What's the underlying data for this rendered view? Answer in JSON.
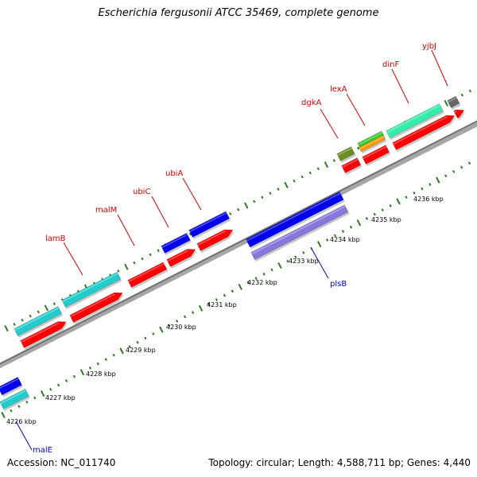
{
  "title": "Escherichia fergusonii ATCC 35469, complete genome",
  "footer": {
    "accession": "Accession: NC_011740",
    "summary": "Topology: circular; Length: 4,588,711 bp; Genes: 4,440"
  },
  "colors": {
    "backbone": "#8c8c8c",
    "tick": "#2a7d1e",
    "forward_label": "#d40000",
    "reverse_label": "#0000cc",
    "cds": "#ff0000",
    "blue": "#0000ee",
    "cyan": "#22cccc",
    "olive": "#6b8e23",
    "green": "#33cc33",
    "orange": "#ff9900",
    "mint": "#33eeaa",
    "grey": "#666666",
    "lavender": "#8877dd"
  },
  "scale_labels": [
    "4226 kbp",
    "4227 kbp",
    "4228 kbp",
    "4229 kbp",
    "4230 kbp",
    "4231 kbp",
    "4232 kbp",
    "4233 kbp",
    "4234 kbp",
    "4235 kbp",
    "4236 kbp"
  ],
  "gene_labels": {
    "lamB": "lamB",
    "malM": "malM",
    "ubiC": "ubiC",
    "ubiA": "ubiA",
    "dgkA": "dgkA",
    "lexA": "lexA",
    "dinF": "dinF",
    "yjbJ": "yjbJ",
    "plsB": "plsB",
    "malE": "malE"
  }
}
